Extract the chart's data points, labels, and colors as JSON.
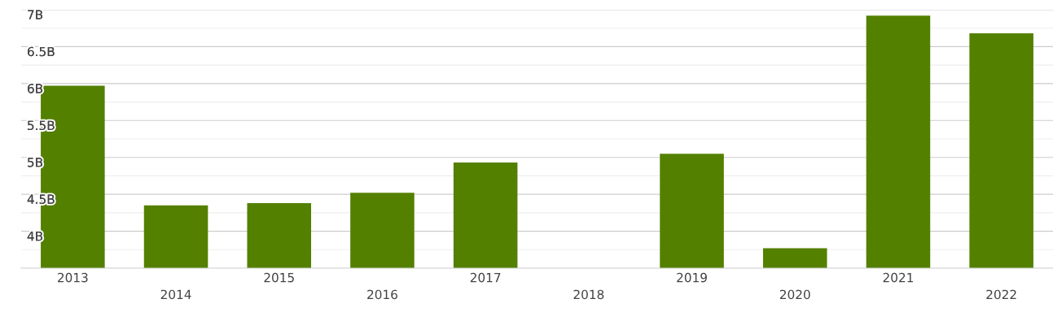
{
  "chart_data": {
    "type": "bar",
    "categories": [
      "2013",
      "2014",
      "2015",
      "2016",
      "2017",
      "2018",
      "2019",
      "2020",
      "2021",
      "2022"
    ],
    "values": [
      5.97,
      4.35,
      4.38,
      4.52,
      4.93,
      null,
      5.05,
      3.77,
      6.92,
      6.68
    ],
    "color": "#548000",
    "ylim": [
      3.5,
      7
    ],
    "yticks": [
      {
        "value": 3.75,
        "label": null
      },
      {
        "value": 4,
        "label": "4B"
      },
      {
        "value": 4.25,
        "label": null
      },
      {
        "value": 4.5,
        "label": "4.5B"
      },
      {
        "value": 4.75,
        "label": null
      },
      {
        "value": 5,
        "label": "5B"
      },
      {
        "value": 5.25,
        "label": null
      },
      {
        "value": 5.5,
        "label": "5.5B"
      },
      {
        "value": 5.75,
        "label": null
      },
      {
        "value": 6,
        "label": "6B"
      },
      {
        "value": 6.25,
        "label": null
      },
      {
        "value": 6.5,
        "label": "6.5B"
      },
      {
        "value": 6.75,
        "label": null
      },
      {
        "value": 7,
        "label": "7B"
      }
    ],
    "grid": "y",
    "legend": false
  }
}
